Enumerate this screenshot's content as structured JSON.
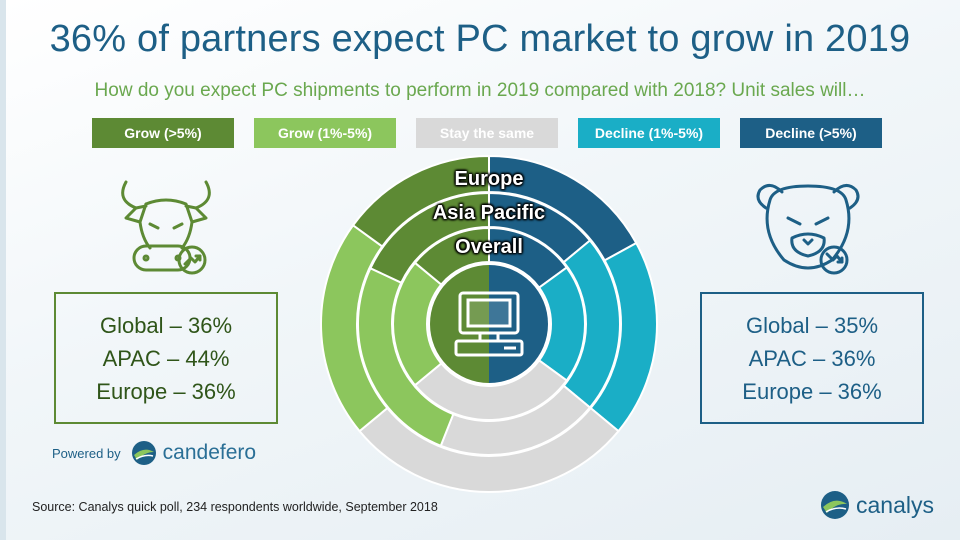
{
  "title": "36% of partners expect PC market to grow in 2019",
  "subtitle": "How do you expect PC shipments to perform in 2019 compared with 2018? Unit sales will…",
  "legend": [
    {
      "label": "Grow (>5%)",
      "color": "#5d8a34"
    },
    {
      "label": "Grow (1%-5%)",
      "color": "#8cc65d"
    },
    {
      "label": "Stay the same",
      "color": "#d9d9d9"
    },
    {
      "label": "Decline (1%-5%)",
      "color": "#1aaec6"
    },
    {
      "label": "Decline (>5%)",
      "color": "#1d5f86"
    }
  ],
  "grow_box": {
    "global": "Global – 36%",
    "apac": "APAC – 44%",
    "europe": "Europe – 36%"
  },
  "decline_box": {
    "global": "Global – 35%",
    "apac": "APAC – 36%",
    "europe": "Europe – 36%"
  },
  "powered_by": {
    "label": "Powered by",
    "brand": "candefero"
  },
  "source": "Source: Canalys quick poll, 234 respondents worldwide, September  2018",
  "logo": "canalys",
  "chart_data": {
    "type": "donut",
    "categories": [
      "Decline (>5%)",
      "Decline (1%-5%)",
      "Stay the same",
      "Grow (1%-5%)",
      "Grow (>5%)"
    ],
    "colors": [
      "#1d5f86",
      "#1aaec6",
      "#d9d9d9",
      "#8cc65d",
      "#5d8a34"
    ],
    "center_icon": "computer-icon",
    "rings": [
      {
        "name": "Europe",
        "values": [
          17,
          19,
          28,
          21,
          15
        ]
      },
      {
        "name": "Asia Pacific",
        "values": [
          14,
          22,
          20,
          26,
          18
        ]
      },
      {
        "name": "Overall",
        "values": [
          15,
          20,
          29,
          22,
          14
        ]
      }
    ]
  }
}
